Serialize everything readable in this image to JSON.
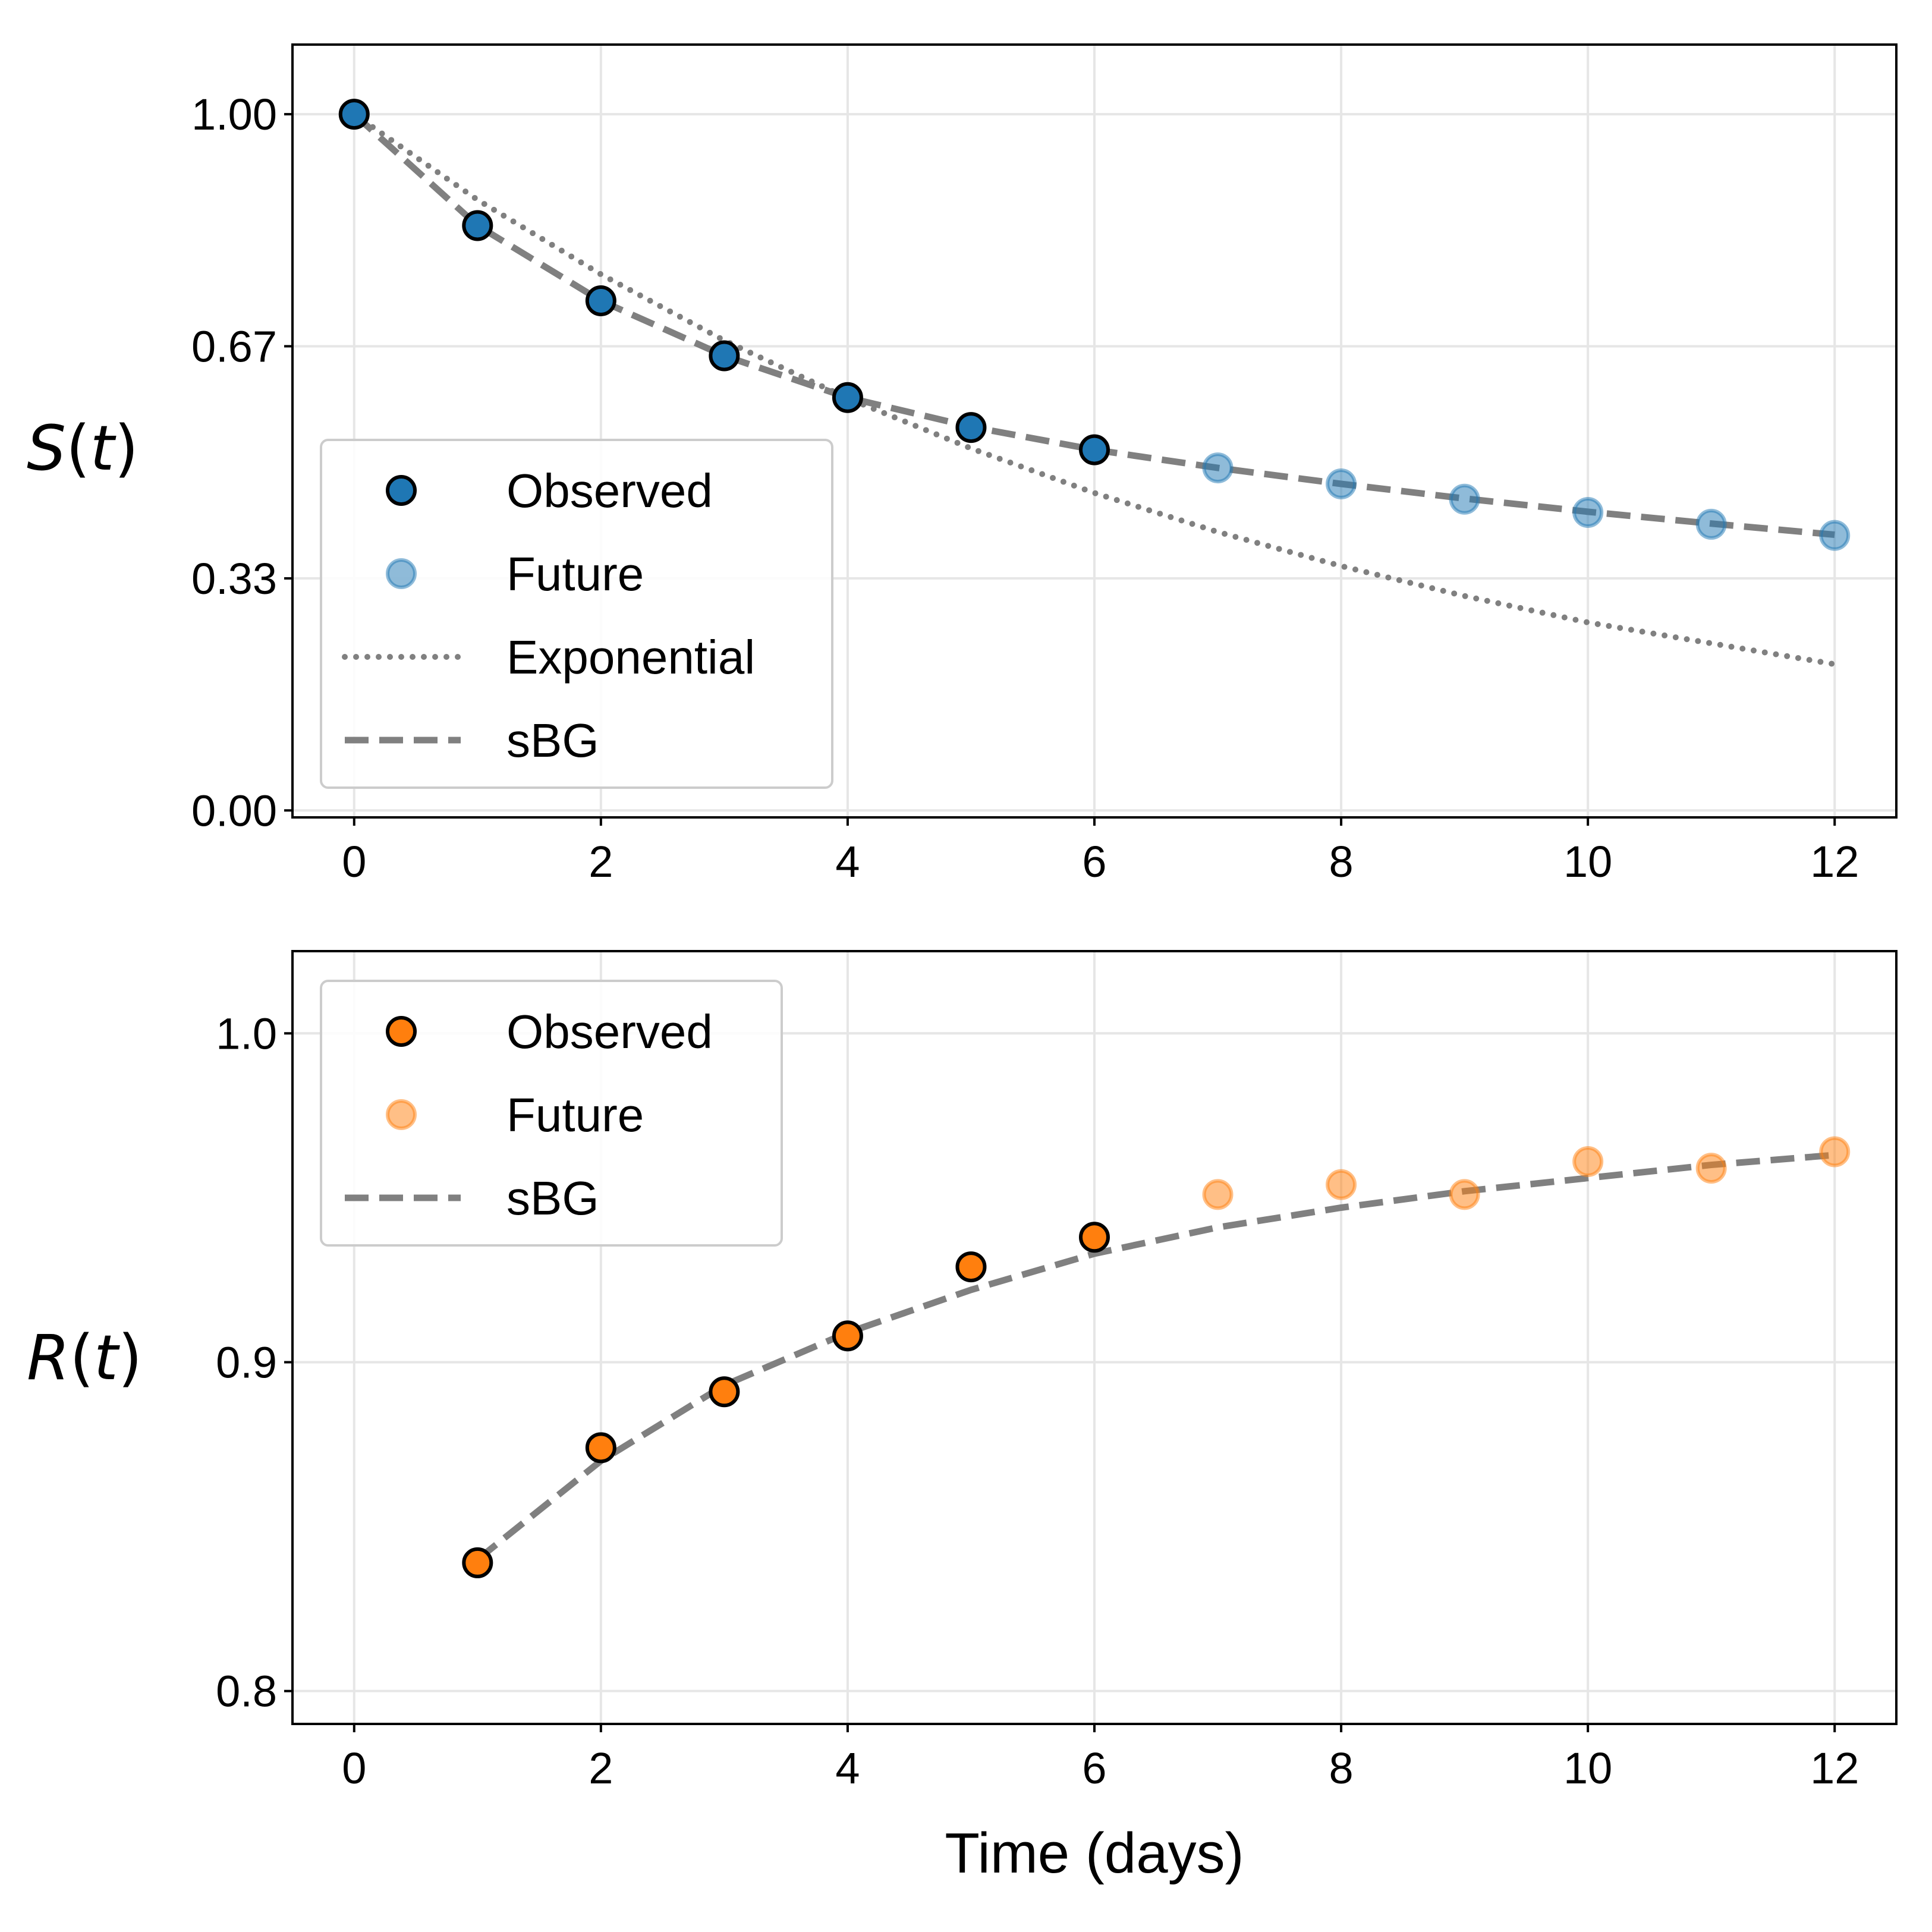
{
  "colors": {
    "blue": "#1f77b4",
    "orange": "#ff7f0e",
    "fit": "#808080",
    "grid": "#e6e6e6"
  },
  "chart_data": [
    {
      "type": "scatter",
      "ylabel_italic": "S",
      "ylabel_paren_open": "(",
      "ylabel_arg": "t",
      "ylabel_paren_close": ")",
      "xlabel": "",
      "xlim": [
        -0.5,
        12.5
      ],
      "ylim": [
        -0.01,
        1.1
      ],
      "xticks": [
        0,
        2,
        4,
        6,
        8,
        10,
        12
      ],
      "xtick_labels": [
        "0",
        "2",
        "4",
        "6",
        "8",
        "10",
        "12"
      ],
      "yticks": [
        0.0,
        0.3333,
        0.6667,
        1.0
      ],
      "ytick_labels": [
        "0.00",
        "0.33",
        "0.67",
        "1.00"
      ],
      "grid": true,
      "legend_position": "lower-left",
      "series": [
        {
          "name": "Observed",
          "kind": "scatter",
          "style": "observed",
          "x": [
            0,
            1,
            2,
            3,
            4,
            5,
            6
          ],
          "y": [
            1.0,
            0.84,
            0.732,
            0.653,
            0.593,
            0.55,
            0.518
          ]
        },
        {
          "name": "Future",
          "kind": "scatter",
          "style": "future",
          "x": [
            7,
            8,
            9,
            10,
            11,
            12
          ],
          "y": [
            0.492,
            0.469,
            0.447,
            0.428,
            0.411,
            0.395
          ]
        },
        {
          "name": "Exponential",
          "kind": "line",
          "style": "dotted",
          "x": [
            0,
            1,
            2,
            3,
            4,
            5,
            6,
            7,
            8,
            9,
            10,
            12
          ],
          "y": [
            1.0,
            0.877,
            0.77,
            0.675,
            0.592,
            0.52,
            0.456,
            0.4,
            0.351,
            0.308,
            0.27,
            0.21
          ]
        },
        {
          "name": "sBG",
          "kind": "line",
          "style": "dashed",
          "x": [
            0,
            1,
            2,
            3,
            4,
            5,
            6,
            7,
            8,
            9,
            10,
            11,
            12
          ],
          "y": [
            1.0,
            0.84,
            0.732,
            0.653,
            0.593,
            0.551,
            0.518,
            0.492,
            0.469,
            0.448,
            0.429,
            0.412,
            0.396
          ]
        }
      ]
    },
    {
      "type": "scatter",
      "ylabel_italic": "R",
      "ylabel_paren_open": "(",
      "ylabel_arg": "t",
      "ylabel_paren_close": ")",
      "xlabel": "Time (days)",
      "xlim": [
        -0.5,
        12.5
      ],
      "ylim": [
        0.79,
        1.025
      ],
      "xticks": [
        0,
        2,
        4,
        6,
        8,
        10,
        12
      ],
      "xtick_labels": [
        "0",
        "2",
        "4",
        "6",
        "8",
        "10",
        "12"
      ],
      "yticks": [
        0.8,
        0.9,
        1.0
      ],
      "ytick_labels": [
        "0.8",
        "0.9",
        "1.0"
      ],
      "grid": true,
      "legend_position": "upper-left",
      "series": [
        {
          "name": "Observed",
          "kind": "scatter",
          "style": "observed",
          "x": [
            1,
            2,
            3,
            4,
            5,
            6
          ],
          "y": [
            0.839,
            0.874,
            0.891,
            0.908,
            0.929,
            0.938
          ]
        },
        {
          "name": "Future",
          "kind": "scatter",
          "style": "future",
          "x": [
            7,
            8,
            9,
            10,
            11,
            12
          ],
          "y": [
            0.951,
            0.954,
            0.951,
            0.961,
            0.959,
            0.964
          ]
        },
        {
          "name": "sBG",
          "kind": "line",
          "style": "dashed",
          "x": [
            1,
            2,
            3,
            4,
            5,
            6,
            7,
            8,
            9,
            10,
            11,
            12
          ],
          "y": [
            0.84,
            0.87,
            0.893,
            0.909,
            0.922,
            0.933,
            0.941,
            0.947,
            0.952,
            0.956,
            0.96,
            0.963
          ]
        }
      ]
    }
  ]
}
